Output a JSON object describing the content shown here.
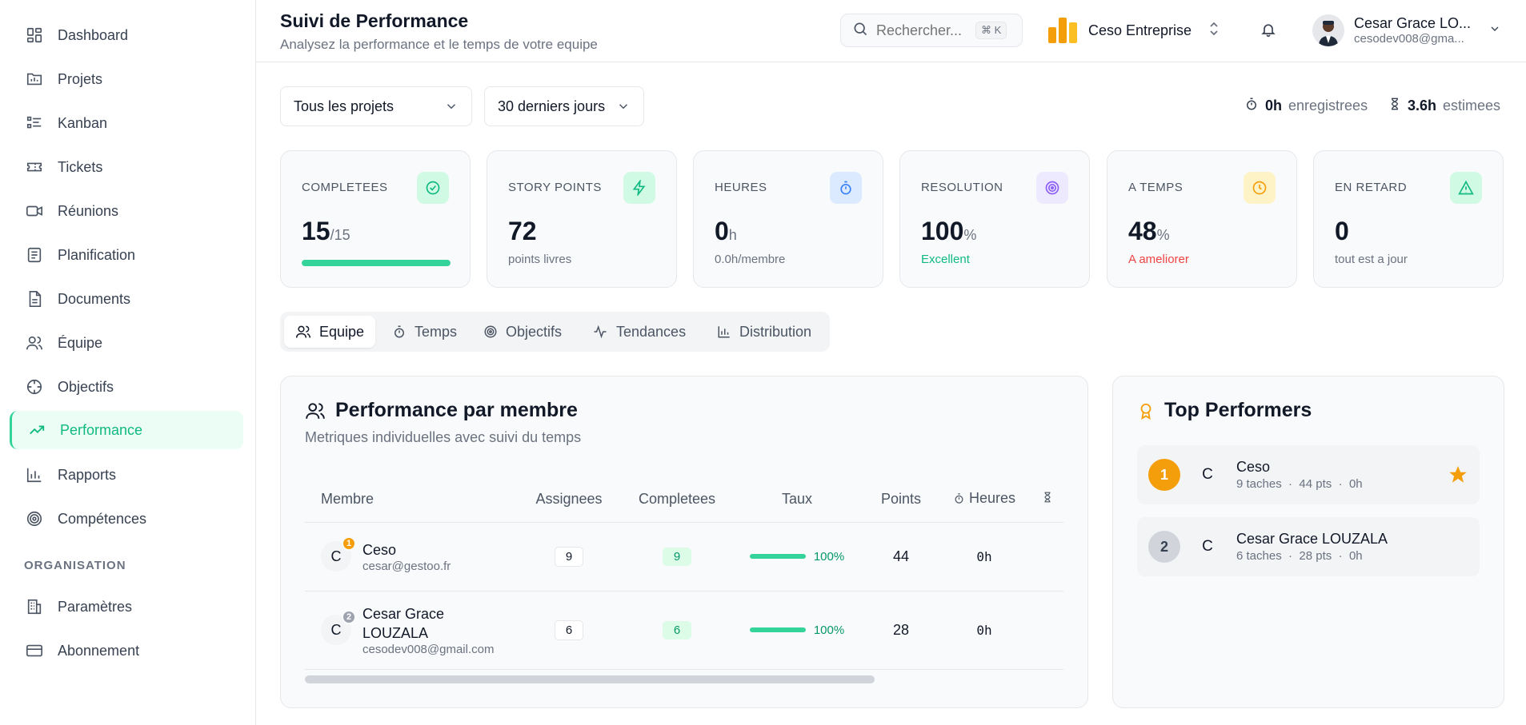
{
  "sidebar": {
    "items": [
      {
        "label": "Dashboard",
        "icon": "dashboard-icon"
      },
      {
        "label": "Projets",
        "icon": "projects-icon"
      },
      {
        "label": "Kanban",
        "icon": "kanban-icon"
      },
      {
        "label": "Tickets",
        "icon": "ticket-icon"
      },
      {
        "label": "Réunions",
        "icon": "video-icon"
      },
      {
        "label": "Planification",
        "icon": "planning-icon"
      },
      {
        "label": "Documents",
        "icon": "document-icon"
      },
      {
        "label": "Équipe",
        "icon": "team-icon"
      },
      {
        "label": "Objectifs",
        "icon": "target-icon"
      },
      {
        "label": "Performance",
        "icon": "trending-up-icon",
        "active": true
      },
      {
        "label": "Rapports",
        "icon": "bar-chart-icon"
      },
      {
        "label": "Compétences",
        "icon": "skills-icon"
      }
    ],
    "section_label": "ORGANISATION",
    "org_items": [
      {
        "label": "Paramètres",
        "icon": "building-icon"
      },
      {
        "label": "Abonnement",
        "icon": "credit-card-icon"
      }
    ]
  },
  "header": {
    "title": "Suivi de Performance",
    "subtitle": "Analysez la performance et le temps de votre equipe",
    "search_placeholder": "Rechercher...",
    "search_shortcut": "⌘ K",
    "org_name": "Ceso Entreprise",
    "user_name": "Cesar Grace LO...",
    "user_email": "cesodev008@gma..."
  },
  "filters": {
    "project": "Tous les projets",
    "period": "30 derniers jours",
    "recorded_value": "0h",
    "recorded_label": "enregistrees",
    "estimated_value": "3.6h",
    "estimated_label": "estimees"
  },
  "stats": {
    "completed": {
      "label": "COMPLETEES",
      "value": "15",
      "total": "/15",
      "progress": 100
    },
    "story_points": {
      "label": "STORY POINTS",
      "value": "72",
      "sub": "points livres"
    },
    "hours": {
      "label": "HEURES",
      "value": "0",
      "unit": "h",
      "sub": "0.0h/membre"
    },
    "resolution": {
      "label": "RESOLUTION",
      "value": "100",
      "unit": "%",
      "sub": "Excellent"
    },
    "on_time": {
      "label": "A TEMPS",
      "value": "48",
      "unit": "%",
      "sub": "A ameliorer"
    },
    "late": {
      "label": "EN RETARD",
      "value": "0",
      "sub": "tout est a jour"
    }
  },
  "colors": {
    "accent": "#10b981",
    "danger": "#ef4444",
    "gold": "#f59e0b",
    "silver": "#9ca3af"
  },
  "tabs": [
    {
      "label": "Equipe",
      "active": true
    },
    {
      "label": "Temps"
    },
    {
      "label": "Objectifs"
    },
    {
      "label": "Tendances"
    },
    {
      "label": "Distribution"
    }
  ],
  "members_panel": {
    "title": "Performance par membre",
    "subtitle": "Metriques individuelles avec suivi du temps",
    "columns": [
      "Membre",
      "Assignees",
      "Completees",
      "Taux",
      "Points",
      "Heures"
    ],
    "rows": [
      {
        "initial": "C",
        "rank": "1",
        "name": "Ceso",
        "email": "cesar@gestoo.fr",
        "assigned": "9",
        "completed": "9",
        "rate": "100%",
        "rate_value": 100,
        "points": "44",
        "hours": "0h"
      },
      {
        "initial": "C",
        "rank": "2",
        "name": "Cesar Grace LOUZALA",
        "email": "cesodev008@gmail.com",
        "assigned": "6",
        "completed": "6",
        "rate": "100%",
        "rate_value": 100,
        "points": "28",
        "hours": "0h"
      }
    ]
  },
  "top_panel": {
    "title": "Top Performers",
    "items": [
      {
        "rank": "1",
        "initial": "C",
        "name": "Ceso",
        "tasks": "9 taches",
        "points": "44 pts",
        "hours": "0h"
      },
      {
        "rank": "2",
        "initial": "C",
        "name": "Cesar Grace LOUZALA",
        "tasks": "6 taches",
        "points": "28 pts",
        "hours": "0h"
      }
    ]
  }
}
